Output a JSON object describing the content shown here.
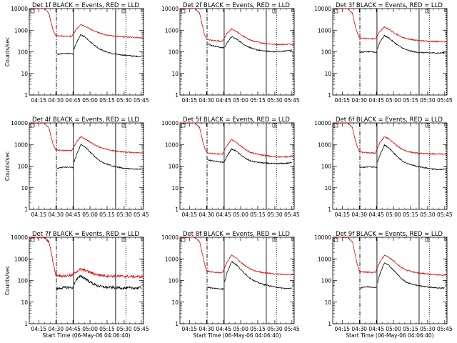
{
  "chart_data": {
    "type": "line",
    "layout": "3x3 grid",
    "x_tick_labels": [
      "04:15",
      "04:30",
      "04:45",
      "05:00",
      "05:15",
      "05:30",
      "05:45"
    ],
    "x_ticks_minutes": [
      15,
      30,
      45,
      60,
      75,
      90,
      105
    ],
    "xlim_minutes": [
      6.67,
      107
    ],
    "xlabel": "Start Time (06-May-06 04:06:40)",
    "ylabel": "Counts/sec",
    "y_scale": "log",
    "ylim": [
      1,
      10000
    ],
    "y_tick_labels": [
      "1",
      "10",
      "100",
      "1000",
      "10000"
    ],
    "y_tick_values": [
      1,
      10,
      100,
      1000,
      10000
    ],
    "series_colors": {
      "events": "#000000",
      "lld": "#e00000"
    },
    "vertical_markers": [
      {
        "minute": 30.5,
        "style": "dash-dot"
      },
      {
        "minute": 45.5,
        "style": "solid"
      },
      {
        "minute": 82.5,
        "style": "solid"
      },
      {
        "minute": 91.5,
        "style": "dotted"
      },
      {
        "minute": 106.5,
        "style": "dotted"
      }
    ],
    "panels": [
      {
        "title": "Det 1f BLACK = Events, RED = LLD",
        "show_ylabel": true,
        "show_xlabel": false,
        "events": {
          "x": [
            31,
            34,
            40,
            45.5
          ],
          "y": [
            75,
            80,
            85,
            78
          ]
        },
        "lld": {
          "x": [
            6.7,
            20,
            24,
            26,
            28,
            30,
            36,
            44,
            48,
            52,
            56,
            60,
            64,
            68,
            72,
            80,
            90,
            100,
            105
          ],
          "y": [
            10000,
            10000,
            6000,
            2000,
            900,
            560,
            530,
            520,
            1100,
            1800,
            1500,
            1150,
            920,
            750,
            640,
            540,
            490,
            460,
            440
          ]
        },
        "events2": {
          "x": [
            46,
            48,
            52,
            56,
            60,
            64,
            68,
            72,
            80,
            90,
            100,
            105
          ],
          "y": [
            130,
            260,
            620,
            480,
            300,
            200,
            140,
            110,
            80,
            70,
            62,
            60
          ]
        }
      },
      {
        "title": "Det 2f BLACK = Events, RED = LLD",
        "show_ylabel": false,
        "show_xlabel": false,
        "events": {
          "x": [
            31,
            34,
            40,
            45.5
          ],
          "y": [
            240,
            200,
            170,
            150
          ]
        },
        "lld": {
          "x": [
            6.7,
            20,
            24,
            26,
            28,
            30,
            36,
            44,
            48,
            52,
            56,
            60,
            64,
            68,
            72,
            80,
            90,
            100,
            105
          ],
          "y": [
            10000,
            10000,
            6000,
            2000,
            700,
            380,
            330,
            300,
            700,
            1150,
            900,
            620,
            460,
            360,
            300,
            250,
            220,
            220,
            230
          ]
        },
        "events2": {
          "x": [
            46,
            48,
            52,
            56,
            60,
            64,
            68,
            72,
            80,
            90,
            100,
            105
          ],
          "y": [
            160,
            260,
            500,
            400,
            280,
            200,
            160,
            130,
            110,
            100,
            110,
            120
          ]
        }
      },
      {
        "title": "Det 3f BLACK = Events, RED = LLD",
        "show_ylabel": false,
        "show_xlabel": false,
        "events": {
          "x": [
            31,
            34,
            40,
            45.5
          ],
          "y": [
            95,
            100,
            100,
            95
          ]
        },
        "lld": {
          "x": [
            6.7,
            20,
            24,
            26,
            28,
            30,
            36,
            44,
            48,
            52,
            56,
            60,
            64,
            68,
            72,
            80,
            90,
            100,
            105
          ],
          "y": [
            10000,
            10000,
            6000,
            2000,
            800,
            440,
            410,
            400,
            850,
            1400,
            1100,
            800,
            600,
            470,
            400,
            340,
            310,
            300,
            300
          ]
        },
        "events2": {
          "x": [
            46,
            48,
            52,
            56,
            60,
            64,
            68,
            72,
            80,
            90,
            100,
            105
          ],
          "y": [
            140,
            280,
            560,
            440,
            290,
            200,
            150,
            120,
            95,
            90,
            88,
            90
          ]
        }
      },
      {
        "title": "Det 4f BLACK = Events, RED = LLD",
        "show_ylabel": true,
        "show_xlabel": false,
        "events": {
          "x": [
            31,
            34,
            40,
            45.5
          ],
          "y": [
            80,
            85,
            90,
            85
          ]
        },
        "lld": {
          "x": [
            6.7,
            20,
            24,
            26,
            28,
            30,
            36,
            44,
            48,
            52,
            56,
            60,
            64,
            68,
            72,
            80,
            90,
            100,
            105
          ],
          "y": [
            10000,
            10000,
            6000,
            2000,
            900,
            560,
            530,
            520,
            1300,
            2300,
            1800,
            1300,
            980,
            780,
            650,
            520,
            450,
            420,
            420
          ]
        },
        "events2": {
          "x": [
            46,
            48,
            52,
            56,
            60,
            64,
            68,
            72,
            80,
            90,
            100,
            105
          ],
          "y": [
            150,
            330,
            1000,
            750,
            450,
            280,
            190,
            140,
            100,
            80,
            72,
            75
          ]
        }
      },
      {
        "title": "Det 5f BLACK = Events, RED = LLD",
        "show_ylabel": false,
        "show_xlabel": false,
        "events": {
          "x": [
            31,
            34,
            40,
            45.5
          ],
          "y": [
            200,
            180,
            160,
            150
          ]
        },
        "lld": {
          "x": [
            6.7,
            20,
            24,
            26,
            28,
            30,
            36,
            44,
            48,
            52,
            56,
            60,
            64,
            68,
            72,
            80,
            90,
            100,
            105
          ],
          "y": [
            10000,
            10000,
            6000,
            2000,
            800,
            420,
            380,
            360,
            900,
            1700,
            1300,
            850,
            600,
            450,
            380,
            320,
            270,
            270,
            290
          ]
        },
        "events2": {
          "x": [
            46,
            48,
            52,
            56,
            60,
            64,
            68,
            72,
            80,
            90,
            100,
            105
          ],
          "y": [
            170,
            300,
            620,
            500,
            330,
            230,
            180,
            160,
            140,
            130,
            135,
            145
          ]
        }
      },
      {
        "title": "Det 6f BLACK = Events, RED = LLD",
        "show_ylabel": false,
        "show_xlabel": false,
        "events": {
          "x": [
            31,
            34,
            40,
            45.5
          ],
          "y": [
            85,
            90,
            92,
            88
          ]
        },
        "lld": {
          "x": [
            6.7,
            20,
            24,
            26,
            28,
            30,
            36,
            44,
            48,
            52,
            56,
            60,
            64,
            68,
            72,
            80,
            90,
            100,
            105
          ],
          "y": [
            10000,
            10000,
            6000,
            2000,
            850,
            450,
            420,
            400,
            1200,
            2300,
            1800,
            1200,
            800,
            600,
            480,
            400,
            370,
            360,
            360
          ]
        },
        "events2": {
          "x": [
            46,
            48,
            52,
            56,
            60,
            64,
            68,
            72,
            80,
            90,
            100,
            105
          ],
          "y": [
            150,
            320,
            950,
            700,
            420,
            260,
            170,
            130,
            100,
            80,
            68,
            72
          ]
        }
      },
      {
        "title": "Det 7f BLACK = Events, RED = LLD",
        "show_ylabel": true,
        "show_xlabel": true,
        "events": {
          "x": [
            31,
            34,
            40,
            45.5
          ],
          "y": [
            40,
            45,
            48,
            45
          ]
        },
        "lld": {
          "x": [
            6.7,
            20,
            24,
            26,
            28,
            30,
            36,
            44,
            48,
            52,
            56,
            60,
            64,
            68,
            72,
            80,
            90,
            100,
            105
          ],
          "y": [
            10000,
            10000,
            6000,
            2000,
            500,
            180,
            160,
            170,
            260,
            330,
            290,
            240,
            200,
            180,
            170,
            160,
            155,
            150,
            150
          ]
        },
        "events2": {
          "x": [
            46,
            48,
            52,
            56,
            60,
            64,
            68,
            72,
            80,
            90,
            100,
            105
          ],
          "y": [
            70,
            110,
            160,
            120,
            85,
            65,
            55,
            50,
            47,
            45,
            45,
            46
          ]
        }
      },
      {
        "title": "Det 8f BLACK = Events, RED = LLD",
        "show_ylabel": false,
        "show_xlabel": true,
        "events": {
          "x": [
            31,
            34,
            40,
            45.5
          ],
          "y": [
            50,
            45,
            42,
            40
          ]
        },
        "lld": {
          "x": [
            6.7,
            20,
            24,
            26,
            28,
            30,
            36,
            44,
            48,
            52,
            56,
            60,
            64,
            68,
            72,
            80,
            90,
            100,
            105
          ],
          "y": [
            10000,
            10000,
            6000,
            2000,
            700,
            280,
            240,
            230,
            700,
            1500,
            1100,
            700,
            480,
            350,
            280,
            230,
            200,
            190,
            190
          ]
        },
        "events2": {
          "x": [
            46,
            48,
            52,
            56,
            60,
            64,
            68,
            72,
            80,
            90,
            100,
            105
          ],
          "y": [
            90,
            230,
            750,
            550,
            330,
            200,
            130,
            95,
            65,
            50,
            42,
            45
          ]
        }
      },
      {
        "title": "Det 9f BLACK = Events, RED = LLD",
        "show_ylabel": false,
        "show_xlabel": true,
        "events": {
          "x": [
            31,
            34,
            40,
            45.5
          ],
          "y": [
            45,
            50,
            50,
            48
          ]
        },
        "lld": {
          "x": [
            6.7,
            20,
            24,
            26,
            28,
            30,
            36,
            44,
            48,
            52,
            56,
            60,
            64,
            68,
            72,
            80,
            90,
            100,
            105
          ],
          "y": [
            10000,
            10000,
            6000,
            2000,
            600,
            260,
            240,
            240,
            700,
            1500,
            1200,
            800,
            520,
            370,
            290,
            230,
            200,
            180,
            180
          ]
        },
        "events2": {
          "x": [
            46,
            48,
            52,
            56,
            60,
            64,
            68,
            72,
            80,
            90,
            100,
            105
          ],
          "y": [
            80,
            200,
            650,
            500,
            300,
            180,
            110,
            80,
            60,
            50,
            45,
            45
          ]
        }
      }
    ]
  }
}
